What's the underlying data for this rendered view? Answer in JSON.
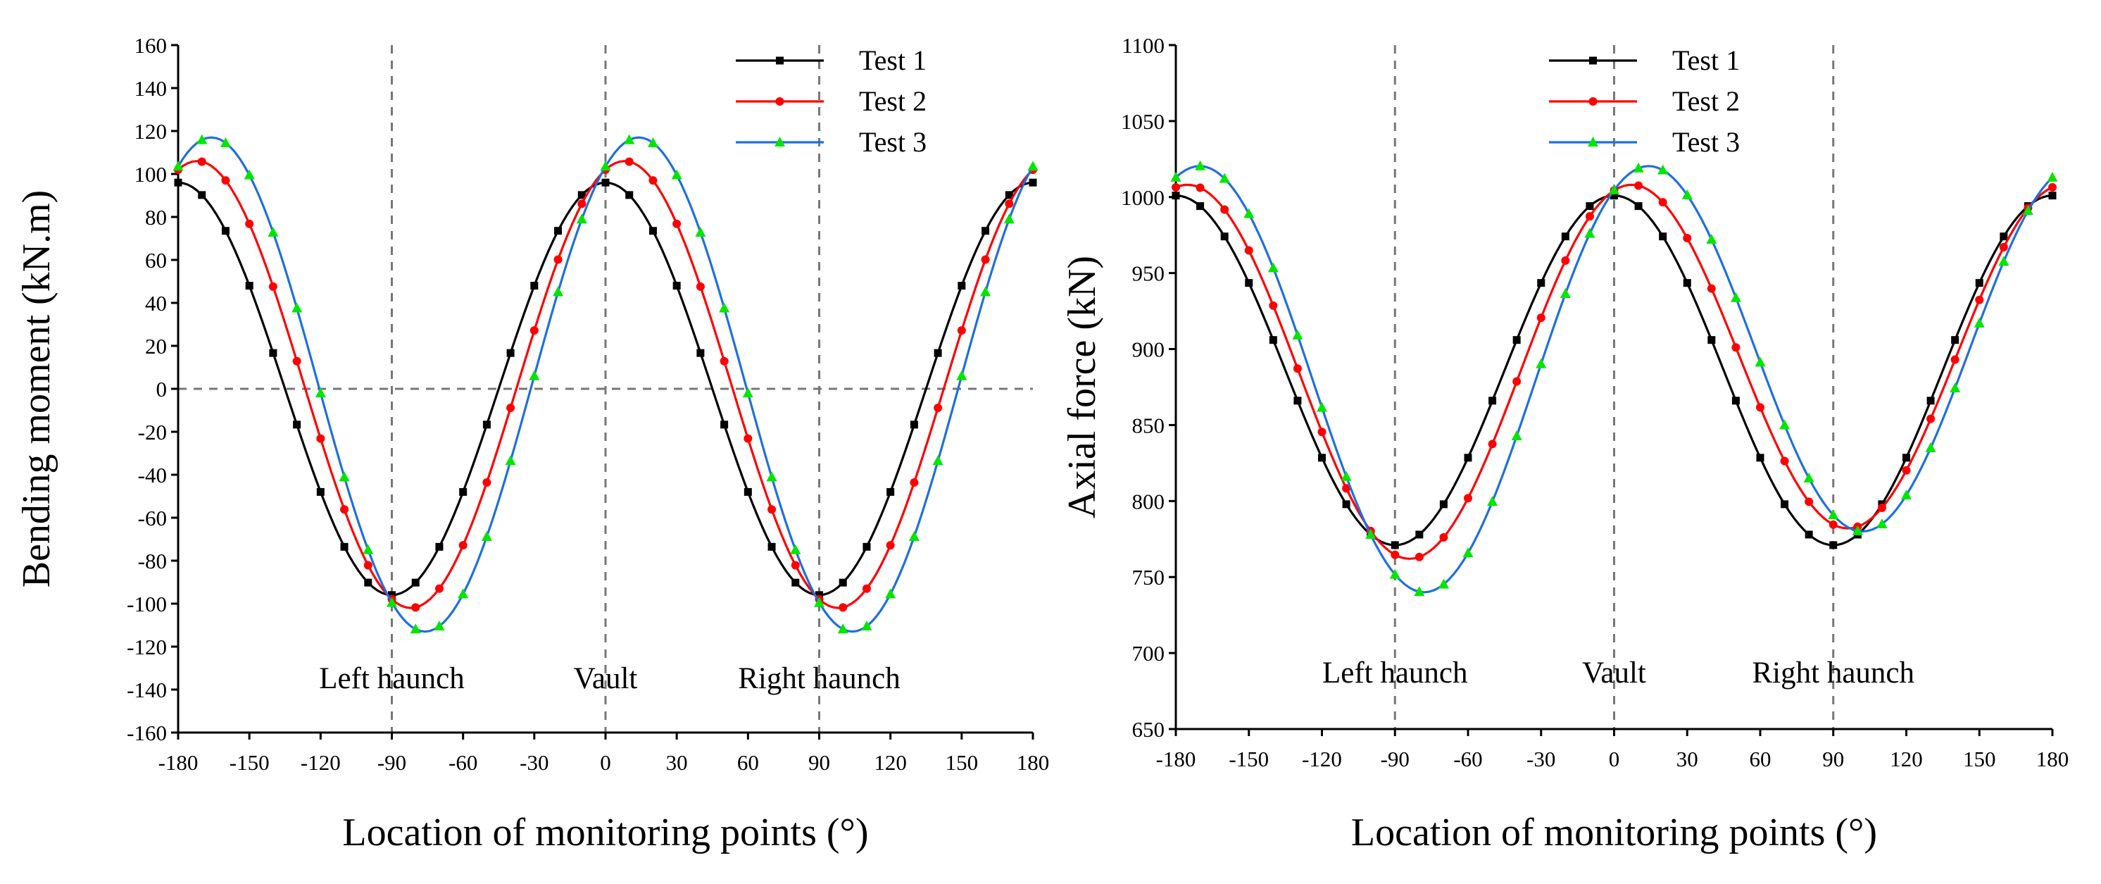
{
  "chart_data": [
    {
      "type": "line",
      "xlabel": "Location of monitoring points (°)",
      "ylabel": "Bending moment (kN.m)",
      "xlim": [
        -180,
        180
      ],
      "ylim": [
        -160,
        160
      ],
      "xticks": [
        -180,
        -150,
        -120,
        -90,
        -60,
        -30,
        0,
        30,
        60,
        90,
        120,
        150,
        180
      ],
      "yticks": [
        -160,
        -140,
        -120,
        -100,
        -80,
        -60,
        -40,
        -20,
        0,
        20,
        40,
        60,
        80,
        100,
        120,
        140,
        160
      ],
      "reference_lines": {
        "vertical": [
          -90,
          0,
          90
        ],
        "horizontal": [
          0
        ]
      },
      "annotations": [
        {
          "text": "Left haunch",
          "x": -90,
          "y": -125
        },
        {
          "text": "Vault",
          "x": 0,
          "y": -125
        },
        {
          "text": "Right haunch",
          "x": 90,
          "y": -125
        }
      ],
      "legend_position": "top-right",
      "series": [
        {
          "name": "Test 1",
          "color": "#000000",
          "marker": "square",
          "model": {
            "offset": 0,
            "amp": 96,
            "shift": 0,
            "amp2": 0
          }
        },
        {
          "name": "Test 2",
          "color": "#ff0000",
          "marker": "circle",
          "model": {
            "offset": 2,
            "amp": 104,
            "shift": 8,
            "amp2": 0
          }
        },
        {
          "name": "Test 3",
          "color": "#1e6fe0",
          "marker": "triangle",
          "marker_color": "#00e600",
          "model": {
            "offset": 2,
            "amp": 115,
            "shift": 14,
            "amp2": 0
          }
        }
      ]
    },
    {
      "type": "line",
      "xlabel": "Location of monitoring points (°)",
      "ylabel": "Axial force (kN)",
      "xlim": [
        -180,
        180
      ],
      "ylim": [
        650,
        1100
      ],
      "xticks": [
        -180,
        -150,
        -120,
        -90,
        -60,
        -30,
        0,
        30,
        60,
        90,
        120,
        150,
        180
      ],
      "yticks": [
        650,
        700,
        750,
        800,
        850,
        900,
        950,
        1000,
        1050,
        1100
      ],
      "reference_lines": {
        "vertical": [
          -90,
          0,
          90
        ],
        "horizontal": []
      },
      "annotations": [
        {
          "text": "Left haunch",
          "x": -90,
          "y": 718
        },
        {
          "text": "Vault",
          "x": 0,
          "y": 718
        },
        {
          "text": "Right haunch",
          "x": 90,
          "y": 718
        }
      ],
      "legend_position": "top-center",
      "series": [
        {
          "name": "Test 1",
          "color": "#000000",
          "marker": "square",
          "model": {
            "offset": 886,
            "amp": 115,
            "shift": 0,
            "amp2": 0
          }
        },
        {
          "name": "Test 2",
          "color": "#ff0000",
          "marker": "circle",
          "model": {
            "offset": 890,
            "amp": 118,
            "shift": 6,
            "amp2": 10
          }
        },
        {
          "name": "Test 3",
          "color": "#1e6fe0",
          "marker": "triangle",
          "marker_color": "#00e600",
          "model": {
            "offset": 890,
            "amp": 130,
            "shift": 12,
            "amp2": 20
          }
        }
      ]
    }
  ]
}
